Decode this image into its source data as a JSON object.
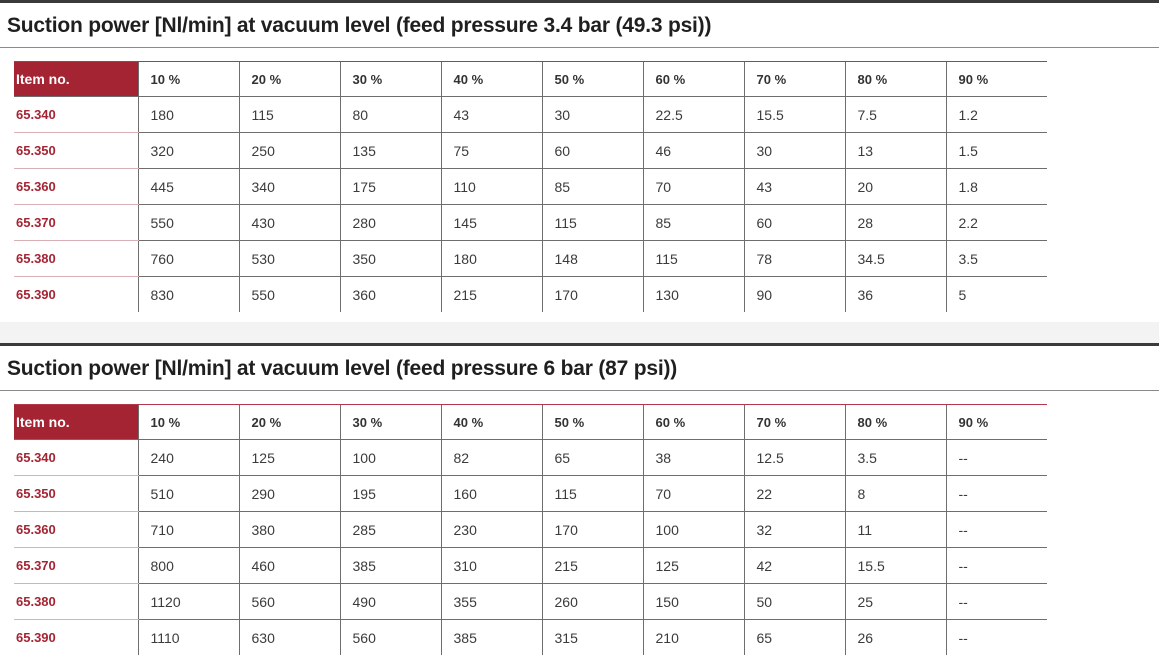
{
  "tables": [
    {
      "title": "Suction power [Nl/min] at vacuum level (feed pressure 3.4 bar (49.3 psi))",
      "columns": [
        "Item no.",
        "10 %",
        "20 %",
        "30 %",
        "40 %",
        "50 %",
        "60 %",
        "70 %",
        "80 %",
        "90 %"
      ],
      "rows": [
        [
          "65.340",
          "180",
          "115",
          "80",
          "43",
          "30",
          "22.5",
          "15.5",
          "7.5",
          "1.2"
        ],
        [
          "65.350",
          "320",
          "250",
          "135",
          "75",
          "60",
          "46",
          "30",
          "13",
          "1.5"
        ],
        [
          "65.360",
          "445",
          "340",
          "175",
          "110",
          "85",
          "70",
          "43",
          "20",
          "1.8"
        ],
        [
          "65.370",
          "550",
          "430",
          "280",
          "145",
          "115",
          "85",
          "60",
          "28",
          "2.2"
        ],
        [
          "65.380",
          "760",
          "530",
          "350",
          "180",
          "148",
          "115",
          "78",
          "34.5",
          "3.5"
        ],
        [
          "65.390",
          "830",
          "550",
          "360",
          "215",
          "170",
          "130",
          "90",
          "36",
          "5"
        ]
      ]
    },
    {
      "title": "Suction power [Nl/min] at vacuum level (feed pressure 6 bar (87 psi))",
      "columns": [
        "Item no.",
        "10 %",
        "20 %",
        "30 %",
        "40 %",
        "50 %",
        "60 %",
        "70 %",
        "80 %",
        "90 %"
      ],
      "rows": [
        [
          "65.340",
          "240",
          "125",
          "100",
          "82",
          "65",
          "38",
          "12.5",
          "3.5",
          "--"
        ],
        [
          "65.350",
          "510",
          "290",
          "195",
          "160",
          "115",
          "70",
          "22",
          "8",
          "--"
        ],
        [
          "65.360",
          "710",
          "380",
          "285",
          "230",
          "170",
          "100",
          "32",
          "11",
          "--"
        ],
        [
          "65.370",
          "800",
          "460",
          "385",
          "310",
          "215",
          "125",
          "42",
          "15.5",
          "--"
        ],
        [
          "65.380",
          "1120",
          "560",
          "490",
          "355",
          "260",
          "150",
          "50",
          "25",
          "--"
        ],
        [
          "65.390",
          "1110",
          "630",
          "560",
          "385",
          "315",
          "210",
          "65",
          "26",
          "--"
        ]
      ]
    }
  ],
  "colors": {
    "accent": "#a52433",
    "section_bar": "#3a3a3a",
    "gap_background": "#f3f3f3"
  }
}
